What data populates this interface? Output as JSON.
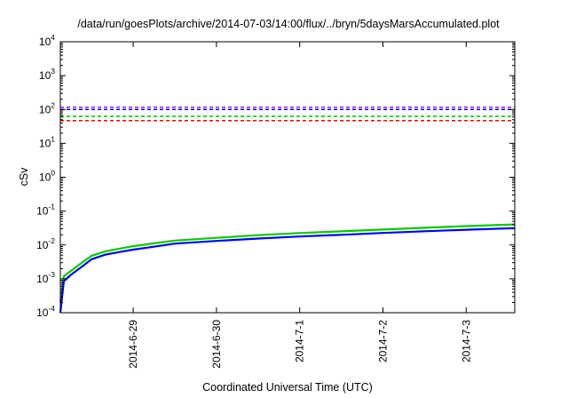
{
  "chart_data": {
    "type": "line",
    "title": "/data/run/goesPlots/archive/2014-07-03/14:00/flux/../bryn/5daysMarsAccumulated.plot",
    "xlabel": "Coordinated Universal Time (UTC)",
    "ylabel": "cSv",
    "y_scale": "log",
    "ylim": [
      0.0001,
      10000
    ],
    "xlim": [
      "2014-06-28T03:00",
      "2014-07-03T14:00"
    ],
    "x_ticks": [
      "2014-6-29",
      "2014-6-30",
      "2014-7-1",
      "2014-7-2",
      "2014-7-3"
    ],
    "y_ticks": [
      {
        "base": "10",
        "exp": "-4"
      },
      {
        "base": "10",
        "exp": "-3"
      },
      {
        "base": "10",
        "exp": "-2"
      },
      {
        "base": "10",
        "exp": "-1"
      },
      {
        "base": "10",
        "exp": "0"
      },
      {
        "base": "10",
        "exp": "1"
      },
      {
        "base": "10",
        "exp": "2"
      },
      {
        "base": "10",
        "exp": "3"
      },
      {
        "base": "10",
        "exp": "4"
      }
    ],
    "grid": false,
    "legend": "none",
    "thresholds": [
      {
        "y": 117,
        "color": "#a020f0",
        "style": "dashed"
      },
      {
        "y": 100,
        "color": "#0000ff",
        "style": "dashed"
      },
      {
        "y": 63,
        "color": "#00cc00",
        "style": "dashed"
      },
      {
        "y": 47,
        "color": "#ff0000",
        "style": "dashed"
      }
    ],
    "series": [
      {
        "color": "#00cc00",
        "points": [
          [
            "2014-06-28T03:00",
            0.0002
          ],
          [
            "2014-06-28T04:00",
            0.0012
          ],
          [
            "2014-06-28T06:00",
            0.0017
          ],
          [
            "2014-06-28T09:00",
            0.0029
          ],
          [
            "2014-06-28T12:00",
            0.0048
          ],
          [
            "2014-06-28T16:00",
            0.0065
          ],
          [
            "2014-06-28T20:00",
            0.0078
          ],
          [
            "2014-06-29T00:00",
            0.0092
          ],
          [
            "2014-06-29T06:00",
            0.0112
          ],
          [
            "2014-06-29T12:00",
            0.0135
          ],
          [
            "2014-06-30T00:00",
            0.0163
          ],
          [
            "2014-06-30T12:00",
            0.0195
          ],
          [
            "2014-07-01T00:00",
            0.0225
          ],
          [
            "2014-07-01T12:00",
            0.0252
          ],
          [
            "2014-07-02T00:00",
            0.0285
          ],
          [
            "2014-07-02T12:00",
            0.0322
          ],
          [
            "2014-07-03T00:00",
            0.036
          ],
          [
            "2014-07-03T14:00",
            0.0405
          ]
        ]
      },
      {
        "color": "#0000ff",
        "points": [
          [
            "2014-06-28T03:00",
            0.0001
          ],
          [
            "2014-06-28T04:00",
            0.00085
          ],
          [
            "2014-06-28T06:00",
            0.0013
          ],
          [
            "2014-06-28T09:00",
            0.0022
          ],
          [
            "2014-06-28T12:00",
            0.0038
          ],
          [
            "2014-06-28T16:00",
            0.0052
          ],
          [
            "2014-06-28T20:00",
            0.0062
          ],
          [
            "2014-06-29T00:00",
            0.0073
          ],
          [
            "2014-06-29T06:00",
            0.0089
          ],
          [
            "2014-06-29T12:00",
            0.011
          ],
          [
            "2014-06-30T00:00",
            0.0132
          ],
          [
            "2014-06-30T12:00",
            0.0155
          ],
          [
            "2014-07-01T00:00",
            0.0178
          ],
          [
            "2014-07-01T12:00",
            0.02
          ],
          [
            "2014-07-02T00:00",
            0.0226
          ],
          [
            "2014-07-02T12:00",
            0.0255
          ],
          [
            "2014-07-03T00:00",
            0.0282
          ],
          [
            "2014-07-03T14:00",
            0.0315
          ]
        ]
      }
    ]
  }
}
